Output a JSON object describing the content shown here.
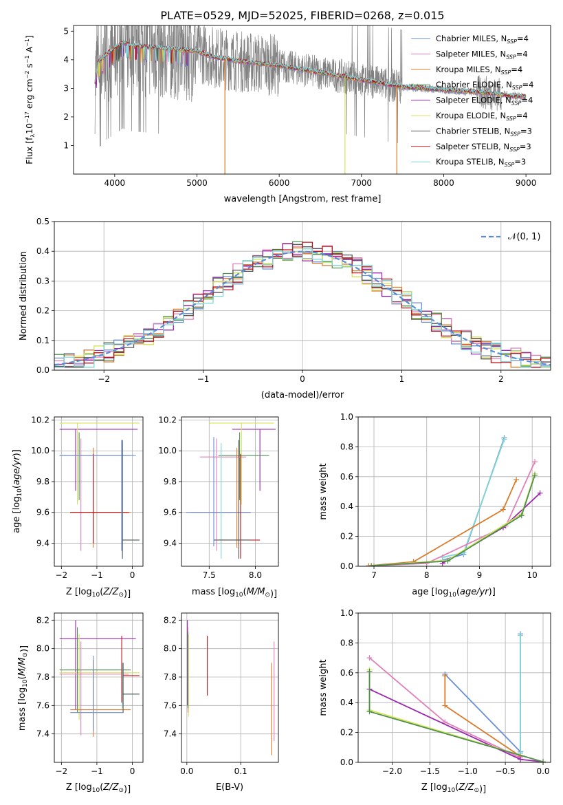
{
  "figure": {
    "title": "PLATE=0529, MJD=52025, FIBERID=0268, z=0.015"
  },
  "colors": {
    "chabrier_miles": "#6a8fd6",
    "salpeter_miles": "#e37fb8",
    "kroupa_miles": "#d97b2a",
    "chabrier_elodie": "#4f8f4f",
    "salpeter_elodie": "#9b27b0",
    "kroupa_elodie": "#d4e35a",
    "chabrier_stelib": "#555555",
    "salpeter_stelib": "#c0141c",
    "kroupa_stelib": "#7fd4d4",
    "data": "#808080",
    "gaussian": "#5b8bd6",
    "grid": "#b0b0b0"
  },
  "chart_data": [
    {
      "id": "spectrum",
      "type": "line",
      "xlabel": "wavelength [Angstrom, rest frame]",
      "ylabel": "Flux [f_λ 10^-17 erg cm^-2 s^-1 A^-1]",
      "xlim": [
        3500,
        9300
      ],
      "ylim": [
        0,
        5.2
      ],
      "xticks": [
        4000,
        5000,
        6000,
        7000,
        8000,
        9000
      ],
      "yticks": [
        1,
        2,
        3,
        4,
        5
      ],
      "grid": false,
      "legend_position": "upper right",
      "legend": [
        {
          "label": "Chabrier MILES, N",
          "sub": "SSP",
          "tail": "=4",
          "color_key": "chabrier_miles"
        },
        {
          "label": "Salpeter MILES, N",
          "sub": "SSP",
          "tail": "=4",
          "color_key": "salpeter_miles"
        },
        {
          "label": "Kroupa MILES, N",
          "sub": "SSP",
          "tail": "=4",
          "color_key": "kroupa_miles"
        },
        {
          "label": "Chabrier ELODIE, N",
          "sub": "SSP",
          "tail": "=4",
          "color_key": "chabrier_elodie"
        },
        {
          "label": "Salpeter ELODIE, N",
          "sub": "SSP",
          "tail": "=4",
          "color_key": "salpeter_elodie"
        },
        {
          "label": "Kroupa ELODIE, N",
          "sub": "SSP",
          "tail": "=4",
          "color_key": "kroupa_elodie"
        },
        {
          "label": "Chabrier STELIB, N",
          "sub": "SSP",
          "tail": "=3",
          "color_key": "chabrier_stelib"
        },
        {
          "label": "Salpeter STELIB, N",
          "sub": "SSP",
          "tail": "=3",
          "color_key": "salpeter_stelib"
        },
        {
          "label": "Kroupa STELIB, N",
          "sub": "SSP",
          "tail": "=3",
          "color_key": "kroupa_stelib"
        }
      ],
      "model_continuum": [
        [
          3760,
          3.2
        ],
        [
          3800,
          3.9
        ],
        [
          3900,
          4.2
        ],
        [
          4000,
          4.4
        ],
        [
          4100,
          4.6
        ],
        [
          4200,
          4.5
        ],
        [
          4400,
          4.45
        ],
        [
          4600,
          4.4
        ],
        [
          4800,
          4.35
        ],
        [
          5000,
          4.3
        ],
        [
          5200,
          4.1
        ],
        [
          5500,
          3.95
        ],
        [
          6000,
          3.8
        ],
        [
          6500,
          3.55
        ],
        [
          7000,
          3.3
        ],
        [
          7500,
          3.05
        ],
        [
          8000,
          2.95
        ],
        [
          8500,
          2.85
        ],
        [
          8800,
          2.75
        ],
        [
          9000,
          2.7
        ]
      ],
      "model_dips": [
        {
          "x": 5340,
          "color_key": "kroupa_miles"
        },
        {
          "x": 6800,
          "color_key": "kroupa_elodie"
        },
        {
          "x": 7430,
          "color_key": "kroupa_miles"
        }
      ]
    },
    {
      "id": "residuals",
      "type": "histogram",
      "xlabel": "(data-model)/error",
      "ylabel": "Normed distribution",
      "xlim": [
        -2.5,
        2.5
      ],
      "ylim": [
        0,
        0.5
      ],
      "xticks": [
        -2,
        -1,
        0,
        1,
        2
      ],
      "yticks": [
        0.0,
        0.1,
        0.2,
        0.3,
        0.4,
        0.5
      ],
      "grid": true,
      "legend_position": "upper right",
      "legend": [
        {
          "label": "𝒩(0, 1)",
          "color_key": "gaussian",
          "style": "dashed"
        }
      ],
      "bin_width": 0.1
    },
    {
      "id": "age_vs_Z",
      "type": "errorbar",
      "xlabel": "Z [log10(Z/Z⊙)]",
      "ylabel": "age [log10(age/yr)]",
      "xlim": [
        -2.2,
        0.3
      ],
      "ylim": [
        9.25,
        10.22
      ],
      "xticks": [
        -2,
        -1,
        0
      ],
      "yticks": [
        9.4,
        9.6,
        9.8,
        10.0,
        10.2
      ],
      "grid": true
    },
    {
      "id": "age_vs_mass",
      "type": "errorbar",
      "xlabel": "mass [log10(M/M⊙)]",
      "xlim": [
        7.2,
        8.25
      ],
      "ylim": [
        9.25,
        10.22
      ],
      "xticks": [
        7.5,
        8.0
      ],
      "yticks": [
        9.4,
        9.6,
        9.8,
        10.0,
        10.2
      ],
      "grid": true
    },
    {
      "id": "weight_vs_age",
      "type": "line",
      "xlabel": "age [log10(age/yr)]",
      "ylabel": "mass weight",
      "xlim": [
        6.7,
        10.35
      ],
      "ylim": [
        0,
        1
      ],
      "xticks": [
        7,
        8,
        9,
        10
      ],
      "yticks": [
        0.0,
        0.2,
        0.4,
        0.6,
        0.8,
        1.0
      ],
      "grid": true,
      "series": [
        {
          "color_key": "chabrier_miles",
          "x": [
            8.3,
            8.7,
            9.47
          ],
          "y": [
            0.04,
            0.08,
            0.86
          ]
        },
        {
          "color_key": "kroupa_stelib",
          "x": [
            8.3,
            8.7,
            9.47
          ],
          "y": [
            0.06,
            0.09,
            0.85
          ]
        },
        {
          "color_key": "kroupa_miles",
          "x": [
            6.9,
            7.75,
            9.45,
            9.7
          ],
          "y": [
            0.003,
            0.03,
            0.38,
            0.58
          ]
        },
        {
          "color_key": "salpeter_miles",
          "x": [
            7.0,
            8.0,
            9.5,
            10.05
          ],
          "y": [
            0.003,
            0.02,
            0.27,
            0.7
          ]
        },
        {
          "color_key": "salpeter_elodie",
          "x": [
            8.3,
            9.45,
            10.15
          ],
          "y": [
            0.02,
            0.26,
            0.49
          ]
        },
        {
          "color_key": "kroupa_elodie",
          "x": [
            6.95,
            8.4,
            9.8,
            10.05
          ],
          "y": [
            0.003,
            0.04,
            0.35,
            0.62
          ]
        },
        {
          "color_key": "chabrier_elodie",
          "x": [
            6.95,
            8.4,
            9.8,
            10.05
          ],
          "y": [
            0.003,
            0.035,
            0.34,
            0.61
          ]
        }
      ]
    },
    {
      "id": "mass_vs_Z",
      "type": "errorbar",
      "xlabel": "Z [log10(Z/Z⊙)]",
      "ylabel": "mass [log10(M/M⊙)]",
      "xlim": [
        -2.2,
        0.3
      ],
      "ylim": [
        7.2,
        8.25
      ],
      "xticks": [
        -2,
        -1,
        0
      ],
      "yticks": [
        7.4,
        7.6,
        7.8,
        8.0,
        8.2
      ],
      "grid": true
    },
    {
      "id": "mass_vs_ebv",
      "type": "errorbar",
      "xlabel": "E(B-V)",
      "xlim": [
        -0.01,
        0.17
      ],
      "ylim": [
        7.2,
        8.25
      ],
      "xticks": [
        0.0,
        0.1
      ],
      "yticks": [
        7.4,
        7.6,
        7.8,
        8.0,
        8.2
      ],
      "grid": true
    },
    {
      "id": "weight_vs_Z",
      "type": "line",
      "xlabel": "Z [log10(Z/Z⊙)]",
      "ylabel": "mass weight",
      "xlim": [
        -2.45,
        0.1
      ],
      "ylim": [
        0,
        1
      ],
      "xticks": [
        -2.0,
        -1.5,
        -1.0,
        -0.5,
        0.0
      ],
      "yticks": [
        0.0,
        0.2,
        0.4,
        0.6,
        0.8,
        1.0
      ],
      "grid": true,
      "series": [
        {
          "color_key": "chabrier_miles",
          "x": [
            -1.3,
            -0.3,
            -0.3
          ],
          "y": [
            0.59,
            0.07,
            0.86
          ]
        },
        {
          "color_key": "kroupa_stelib",
          "x": [
            -0.3,
            -0.3
          ],
          "y": [
            0.06,
            0.85
          ]
        },
        {
          "color_key": "kroupa_miles",
          "x": [
            -1.3,
            -1.3,
            -0.3
          ],
          "y": [
            0.58,
            0.38,
            0.04
          ]
        },
        {
          "color_key": "salpeter_miles",
          "x": [
            -2.3,
            -1.3,
            -0.3
          ],
          "y": [
            0.7,
            0.27,
            0.03
          ]
        },
        {
          "color_key": "salpeter_elodie",
          "x": [
            -2.3,
            -0.3,
            0.0
          ],
          "y": [
            0.49,
            0.02,
            0.003
          ]
        },
        {
          "color_key": "kroupa_elodie",
          "x": [
            -2.3,
            -2.3,
            0.0
          ],
          "y": [
            0.62,
            0.35,
            0.003
          ]
        },
        {
          "color_key": "chabrier_elodie",
          "x": [
            -2.3,
            -2.3,
            0.0
          ],
          "y": [
            0.61,
            0.34,
            0.003
          ]
        }
      ]
    }
  ]
}
